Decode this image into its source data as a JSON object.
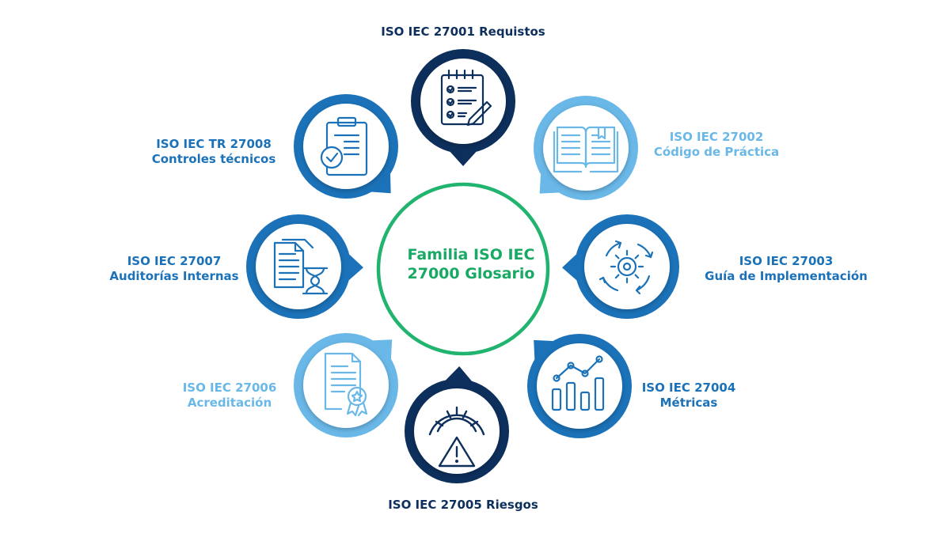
{
  "center": {
    "line1": "Familia ISO IEC",
    "line2": "27000 Glosario",
    "color": "#18a965"
  },
  "nodes": [
    {
      "id": "27001",
      "line1": "ISO IEC 27001 Requistos",
      "line2": "",
      "icon": "checklist-icon",
      "color": "#0d2f5c"
    },
    {
      "id": "27002",
      "line1": "ISO IEC 27002",
      "line2": "Código de Práctica",
      "icon": "open-book-icon",
      "color": "#6ab8e8"
    },
    {
      "id": "27003",
      "line1": "ISO IEC 27003",
      "line2": "Guía de Implementación",
      "icon": "gear-cycle-icon",
      "color": "#1b72b8"
    },
    {
      "id": "27004",
      "line1": "ISO IEC 27004",
      "line2": "Métricas",
      "icon": "bar-chart-icon",
      "color": "#1b72b8"
    },
    {
      "id": "27005",
      "line1": "ISO IEC 27005 Riesgos",
      "line2": "",
      "icon": "risk-gauge-icon",
      "color": "#0d2f5c"
    },
    {
      "id": "27006",
      "line1": "ISO IEC 27006",
      "line2": "Acreditación",
      "icon": "certificate-icon",
      "color": "#6ab8e8"
    },
    {
      "id": "27007",
      "line1": "ISO IEC 27007",
      "line2": "Auditorías Internas",
      "icon": "audit-documents-icon",
      "color": "#1b72b8"
    },
    {
      "id": "27008",
      "line1": "ISO IEC TR 27008",
      "line2": "Controles técnicos",
      "icon": "clipboard-check-icon",
      "color": "#1b72b8"
    }
  ]
}
